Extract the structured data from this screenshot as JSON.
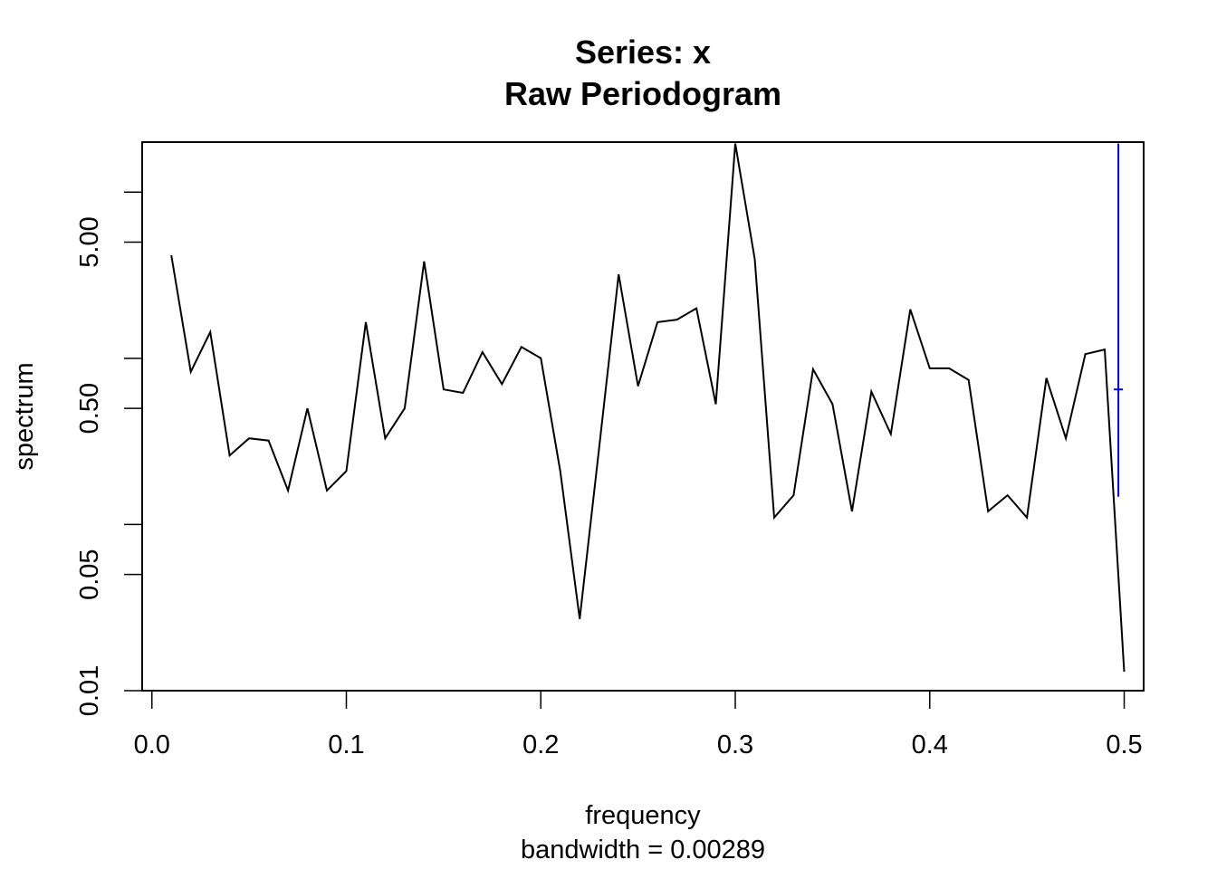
{
  "chart_data": {
    "type": "line",
    "title": "Series: x",
    "subtitle": "Raw Periodogram",
    "xlabel": "frequency",
    "sublabel": "bandwidth = 0.00289",
    "ylabel": "spectrum",
    "y_scale": "log",
    "xlim": [
      -0.005,
      0.51
    ],
    "ylim": [
      0.01,
      20
    ],
    "x_ticks": [
      0.0,
      0.1,
      0.2,
      0.3,
      0.4,
      0.5
    ],
    "x_tick_labels": [
      "0.0",
      "0.1",
      "0.2",
      "0.3",
      "0.4",
      "0.5"
    ],
    "y_ticks_labeled": [
      0.01,
      0.05,
      0.5,
      5
    ],
    "y_tick_labels": [
      "0.01",
      "0.05",
      "0.50",
      "5.00"
    ],
    "y_ticks_minor": [
      0.1,
      1,
      10
    ],
    "grid": false,
    "line_color": "#000000",
    "ci_color": "#0000ff",
    "series": [
      {
        "x": [
          0.01,
          0.02,
          0.03,
          0.04,
          0.05,
          0.06,
          0.07,
          0.08,
          0.09,
          0.1,
          0.11,
          0.12,
          0.13,
          0.14,
          0.15,
          0.16,
          0.17,
          0.18,
          0.19,
          0.2,
          0.21,
          0.22,
          0.23,
          0.24,
          0.25,
          0.26,
          0.27,
          0.28,
          0.29,
          0.3,
          0.31,
          0.32,
          0.33,
          0.34,
          0.35,
          0.36,
          0.37,
          0.38,
          0.39,
          0.4,
          0.41,
          0.42,
          0.43,
          0.44,
          0.45,
          0.46,
          0.47,
          0.48,
          0.49,
          0.5
        ],
        "values": [
          4.17,
          0.83,
          1.44,
          0.26,
          0.33,
          0.32,
          0.16,
          0.5,
          0.16,
          0.21,
          1.65,
          0.33,
          0.5,
          3.83,
          0.65,
          0.62,
          1.09,
          0.7,
          1.17,
          1.0,
          0.21,
          0.027,
          0.29,
          3.2,
          0.68,
          1.65,
          1.71,
          2.0,
          0.53,
          19.6,
          3.96,
          0.11,
          0.15,
          0.86,
          0.53,
          0.12,
          0.63,
          0.35,
          1.97,
          0.87,
          0.87,
          0.74,
          0.12,
          0.15,
          0.11,
          0.76,
          0.33,
          1.06,
          1.13,
          0.013
        ]
      }
    ],
    "ci_bar": {
      "x": 0.497,
      "center": 0.65,
      "lower": 0.147,
      "upper": 19.6
    }
  }
}
